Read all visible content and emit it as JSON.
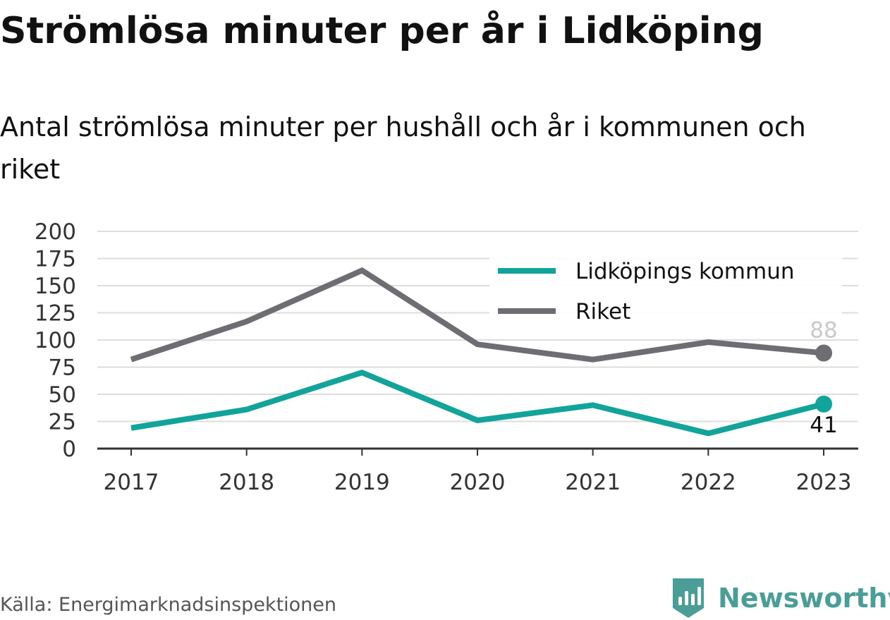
{
  "title": "Strömlösa minuter per år i Lidköping",
  "subtitle": "Antal strömlösa minuter per hushåll och år i kommunen och riket",
  "source": "Källa: Energimarknadsinspektionen",
  "brand": {
    "name": "Newsworthy",
    "logo_icon": "bar-chart-badge-icon",
    "color": "#4a9e97"
  },
  "chart_data": {
    "type": "line",
    "x": [
      "2017",
      "2018",
      "2019",
      "2020",
      "2021",
      "2022",
      "2023"
    ],
    "yticks": [
      "0",
      "25",
      "50",
      "75",
      "100",
      "125",
      "150",
      "175",
      "200"
    ],
    "ylim": [
      0,
      200
    ],
    "grid": true,
    "legend_position": "top-right",
    "series": [
      {
        "name": "Lidköpings kommun",
        "color": "#12a49a",
        "values": [
          19,
          36,
          70,
          26,
          40,
          14,
          41
        ],
        "end_label": "41",
        "end_label_position": "below"
      },
      {
        "name": "Riket",
        "color": "#6d6d73",
        "values": [
          82,
          117,
          164,
          96,
          82,
          98,
          88
        ],
        "end_label": "88",
        "end_label_position": "above"
      }
    ]
  }
}
